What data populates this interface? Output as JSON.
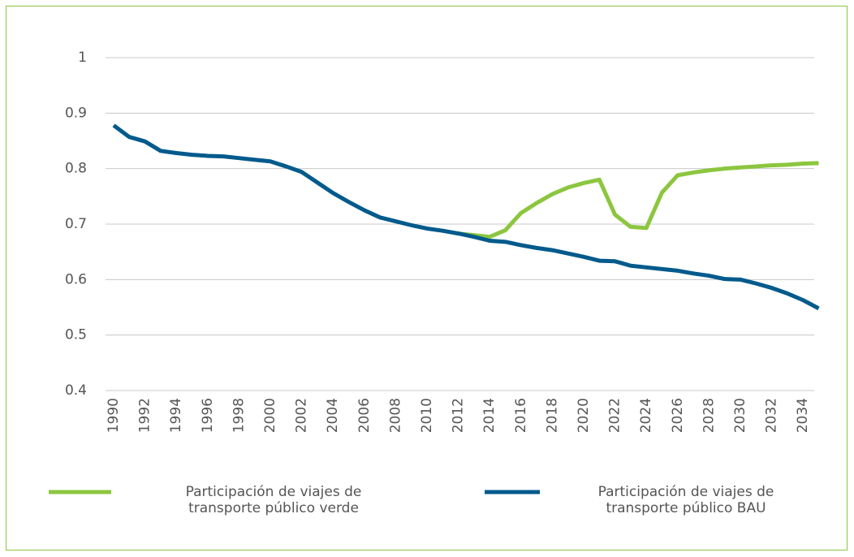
{
  "chart_data": {
    "type": "line",
    "x": [
      1990,
      1991,
      1992,
      1993,
      1994,
      1995,
      1996,
      1997,
      1998,
      1999,
      2000,
      2001,
      2002,
      2003,
      2004,
      2005,
      2006,
      2007,
      2008,
      2009,
      2010,
      2011,
      2012,
      2013,
      2014,
      2015,
      2016,
      2017,
      2018,
      2019,
      2020,
      2021,
      2022,
      2023,
      2024,
      2025,
      2026,
      2027,
      2028,
      2029,
      2030,
      2031,
      2032,
      2033,
      2034,
      2035
    ],
    "series": [
      {
        "name": "Participación de viajes de transporte público verde",
        "color": "#8cc63f",
        "values": [
          null,
          null,
          null,
          null,
          null,
          null,
          null,
          null,
          null,
          null,
          null,
          null,
          null,
          null,
          null,
          null,
          null,
          null,
          null,
          null,
          null,
          null,
          0.683,
          0.68,
          0.677,
          0.689,
          0.72,
          0.738,
          0.754,
          0.766,
          0.774,
          0.78,
          0.717,
          0.695,
          0.693,
          0.757,
          0.788,
          0.793,
          0.797,
          0.8,
          0.802,
          0.804,
          0.806,
          0.807,
          0.809,
          0.81
        ]
      },
      {
        "name": "Participación de viajes de transporte público BAU",
        "color": "#005a8c",
        "values": [
          0.878,
          0.857,
          0.849,
          0.832,
          0.828,
          0.825,
          0.823,
          0.822,
          0.819,
          0.816,
          0.813,
          0.804,
          0.794,
          0.775,
          0.756,
          0.74,
          0.725,
          0.712,
          0.705,
          0.698,
          0.692,
          0.688,
          0.683,
          0.677,
          0.67,
          0.668,
          0.662,
          0.657,
          0.653,
          0.647,
          0.641,
          0.634,
          0.633,
          0.625,
          0.622,
          0.619,
          0.616,
          0.611,
          0.607,
          0.601,
          0.6,
          0.593,
          0.585,
          0.575,
          0.563,
          0.548
        ]
      }
    ],
    "xlim": [
      1990,
      2035
    ],
    "xticks": [
      1990,
      1992,
      1994,
      1996,
      1998,
      2000,
      2002,
      2004,
      2006,
      2008,
      2010,
      2012,
      2014,
      2016,
      2018,
      2020,
      2022,
      2024,
      2026,
      2028,
      2030,
      2032,
      2034
    ],
    "ylim": [
      0.4,
      1
    ],
    "yticks": [
      0.4,
      0.5,
      0.6,
      0.7,
      0.8,
      0.9,
      1
    ],
    "grid": true
  }
}
